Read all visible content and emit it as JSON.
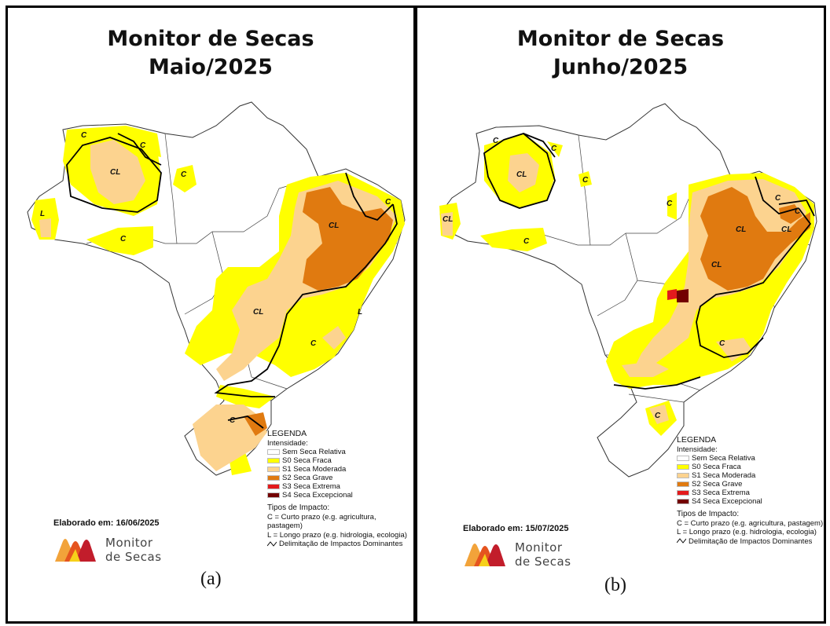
{
  "panels": [
    {
      "title_line1": "Monitor de Secas",
      "title_line2": "Maio/2025",
      "elaborated": "Elaborado em: 16/06/2025",
      "caption": "(a)"
    },
    {
      "title_line1": "Monitor de Secas",
      "title_line2": "Junho/2025",
      "elaborated": "Elaborado em: 15/07/2025",
      "caption": "(b)"
    }
  ],
  "legend": {
    "title": "LEGENDA",
    "intensity_heading": "Intensidade:",
    "items": [
      {
        "label": "Sem Seca Relativa",
        "color": "#ffffff"
      },
      {
        "label": "S0 Seca Fraca",
        "color": "#ffff00"
      },
      {
        "label": "S1 Seca Moderada",
        "color": "#fcd38f"
      },
      {
        "label": "S2 Seca Grave",
        "color": "#e07a10"
      },
      {
        "label": "S3 Seca Extrema",
        "color": "#e31a1c"
      },
      {
        "label": "S4 Seca Excepcional",
        "color": "#730000"
      }
    ],
    "impact_heading": "Tipos de Impacto:",
    "impact_short": "C = Curto prazo (e.g. agricultura, pastagem)",
    "impact_long": "L = Longo prazo (e.g. hidrologia, ecologia)",
    "delimitation": "Delimitação de Impactos Dominantes"
  },
  "brand": {
    "line1": "Monitor",
    "line2": "de Secas"
  },
  "map_labels": {
    "maio": [
      "C",
      "C",
      "CL",
      "C",
      "L",
      "C",
      "CL",
      "C",
      "CL",
      "C",
      "L",
      "C"
    ],
    "junho": [
      "C",
      "C",
      "CL",
      "C",
      "C",
      "CL",
      "C",
      "C",
      "CL",
      "CL",
      "C",
      "CL",
      "C",
      "C"
    ]
  }
}
